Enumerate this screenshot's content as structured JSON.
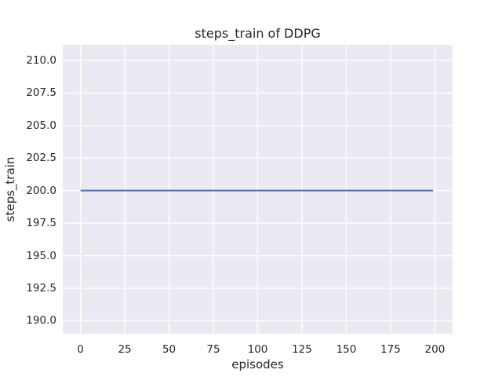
{
  "chart_data": {
    "type": "line",
    "title": "steps_train of DDPG",
    "xlabel": "episodes",
    "ylabel": "steps_train",
    "x_ticks": [
      0,
      25,
      50,
      75,
      100,
      125,
      150,
      175,
      200
    ],
    "y_ticks": [
      190.0,
      192.5,
      195.0,
      197.5,
      200.0,
      202.5,
      205.0,
      207.5,
      210.0
    ],
    "y_tick_decimals": 1,
    "xlim": [
      -10,
      210
    ],
    "ylim": [
      189.0,
      211.2
    ],
    "grid": true,
    "legend_position": "none",
    "series": [
      {
        "name": "steps_train",
        "color": "#4c72b0",
        "x": [
          0,
          199
        ],
        "y": [
          200,
          200
        ],
        "description": "constant value 200 for all episodes 0-199"
      }
    ],
    "colors": {
      "plot_background": "#eaeaf2",
      "grid_line": "#ffffff",
      "figure_background": "#ffffff",
      "text": "#262626",
      "line": "#4c72b0"
    }
  }
}
